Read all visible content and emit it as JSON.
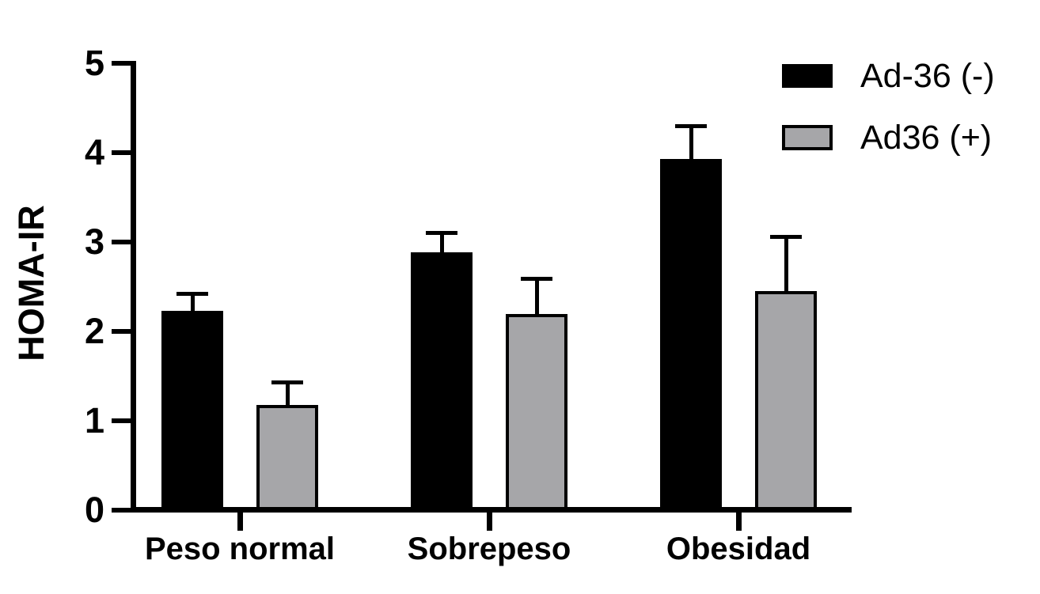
{
  "figure": {
    "background": "#FFFFFF",
    "axis_color": "#000000"
  },
  "chart_data": {
    "type": "bar",
    "title": "",
    "xlabel": "",
    "ylabel": "HOMA-IR",
    "categories": [
      "Peso normal",
      "Sobrepeso",
      "Obesidad"
    ],
    "series": [
      {
        "name": "Ad-36 (-)",
        "color": "#000000",
        "border_color": "#000000",
        "values": [
          2.23,
          2.88,
          3.93
        ],
        "errors": [
          0.19,
          0.22,
          0.37
        ]
      },
      {
        "name": "Ad36 (+)",
        "color": "#A6A6A9",
        "border_color": "#000000",
        "values": [
          1.17,
          2.19,
          2.45
        ],
        "errors": [
          0.26,
          0.4,
          0.61
        ]
      }
    ],
    "ylim": [
      0,
      5
    ],
    "yticks": [
      0,
      1,
      2,
      3,
      4,
      5
    ],
    "grid": false,
    "error_bars": "upper-only T-caps",
    "legend_position": "top-right"
  }
}
